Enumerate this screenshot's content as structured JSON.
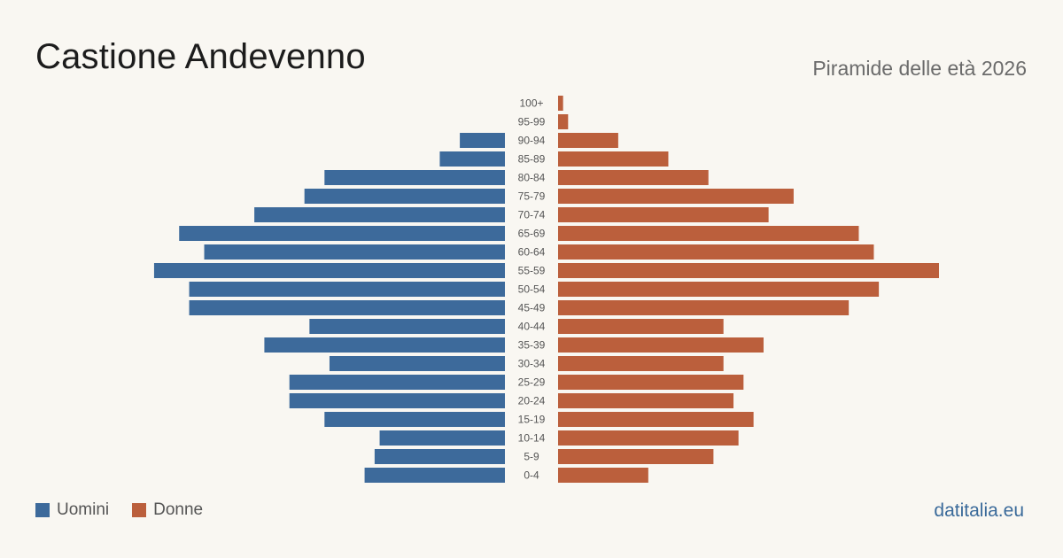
{
  "header": {
    "title": "Castione Andevenno",
    "subtitle": "Piramide delle età 2026"
  },
  "legend": {
    "men_label": "Uomini",
    "women_label": "Donne"
  },
  "footer": {
    "source": "datitalia.eu"
  },
  "colors": {
    "men": "#3d6a9b",
    "women": "#bb5f3c",
    "label": "#555555"
  },
  "chart_data": {
    "type": "bar",
    "orientation": "horizontal-pyramid",
    "title": "Castione Andevenno",
    "subtitle": "Piramide delle età 2026",
    "categories": [
      "100+",
      "95-99",
      "90-94",
      "85-89",
      "80-84",
      "75-79",
      "70-74",
      "65-69",
      "60-64",
      "55-59",
      "50-54",
      "45-49",
      "40-44",
      "35-39",
      "30-34",
      "25-29",
      "20-24",
      "15-19",
      "10-14",
      "5-9",
      "0-4"
    ],
    "series": [
      {
        "name": "Uomini",
        "values": [
          0,
          0,
          9,
          13,
          36,
          40,
          50,
          65,
          60,
          70,
          63,
          63,
          39,
          48,
          35,
          43,
          43,
          36,
          25,
          26,
          28
        ]
      },
      {
        "name": "Donne",
        "values": [
          1,
          2,
          12,
          22,
          30,
          47,
          42,
          60,
          63,
          76,
          64,
          58,
          33,
          41,
          33,
          37,
          35,
          39,
          36,
          31,
          18
        ]
      }
    ],
    "axis_max": 76,
    "grid": false,
    "legend_position": "bottom-left"
  }
}
